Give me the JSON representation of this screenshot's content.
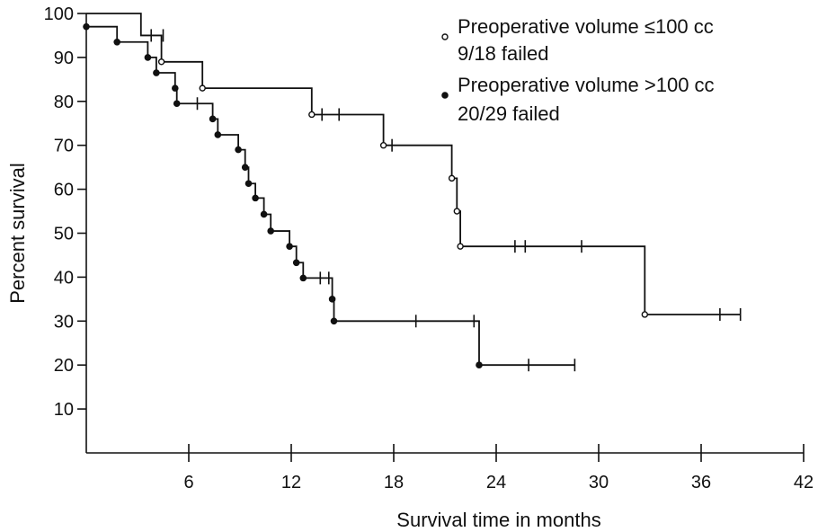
{
  "chart_data": {
    "type": "line",
    "subtype": "kaplan-meier step curve",
    "xlabel": "Survival time in months",
    "ylabel": "Percent survival",
    "xlim": [
      0,
      42
    ],
    "ylim": [
      0,
      100
    ],
    "x_ticks": [
      6,
      12,
      18,
      24,
      30,
      36,
      42
    ],
    "y_ticks": [
      10,
      20,
      30,
      40,
      50,
      60,
      70,
      80,
      90,
      100
    ],
    "grid": false,
    "legend_position": "top-right",
    "series": [
      {
        "name": "Preoperative volume ≤100 cc",
        "note": "9/18 failed",
        "marker": "open-circle",
        "steps": [
          [
            0,
            100
          ],
          [
            3.2,
            95
          ],
          [
            4.4,
            89
          ],
          [
            6.8,
            83
          ],
          [
            13.2,
            77
          ],
          [
            17.4,
            70
          ],
          [
            21.4,
            62.5
          ],
          [
            21.7,
            55
          ],
          [
            21.9,
            47
          ],
          [
            32.7,
            31.5
          ]
        ],
        "events": [
          [
            4.4,
            89
          ],
          [
            6.8,
            83
          ],
          [
            13.2,
            77
          ],
          [
            17.4,
            70
          ],
          [
            21.4,
            62.5
          ],
          [
            21.7,
            55
          ],
          [
            21.9,
            47
          ],
          [
            32.7,
            31.5
          ]
        ],
        "censored": [
          [
            3.8,
            95
          ],
          [
            13.8,
            77
          ],
          [
            14.8,
            77
          ],
          [
            17.9,
            70
          ],
          [
            25.1,
            47
          ],
          [
            25.7,
            47
          ],
          [
            29.0,
            47
          ],
          [
            37.1,
            31.5
          ],
          [
            38.3,
            31.5
          ]
        ],
        "end_x": 38.3
      },
      {
        "name": "Preoperative volume >100 cc",
        "note": "20/29 failed",
        "marker": "filled-circle",
        "steps": [
          [
            0,
            97
          ],
          [
            1.8,
            93.5
          ],
          [
            3.6,
            90
          ],
          [
            4.1,
            86.5
          ],
          [
            5.2,
            83
          ],
          [
            5.3,
            79.5
          ],
          [
            7.4,
            76
          ],
          [
            7.7,
            72.4
          ],
          [
            8.9,
            69
          ],
          [
            9.3,
            65
          ],
          [
            9.5,
            61.3
          ],
          [
            9.9,
            58
          ],
          [
            10.4,
            54.3
          ],
          [
            10.8,
            50.5
          ],
          [
            11.9,
            47
          ],
          [
            12.3,
            43.3
          ],
          [
            12.7,
            39.8
          ],
          [
            14.4,
            35
          ],
          [
            14.5,
            30
          ],
          [
            23.0,
            20
          ]
        ],
        "events": [
          [
            0,
            97
          ],
          [
            1.8,
            93.5
          ],
          [
            3.6,
            90
          ],
          [
            4.1,
            86.5
          ],
          [
            5.2,
            83
          ],
          [
            5.3,
            79.5
          ],
          [
            7.4,
            76
          ],
          [
            7.7,
            72.4
          ],
          [
            8.9,
            69
          ],
          [
            9.3,
            65
          ],
          [
            9.5,
            61.3
          ],
          [
            9.9,
            58
          ],
          [
            10.4,
            54.3
          ],
          [
            10.8,
            50.5
          ],
          [
            11.9,
            47
          ],
          [
            12.3,
            43.3
          ],
          [
            12.7,
            39.8
          ],
          [
            14.4,
            35
          ],
          [
            14.5,
            30
          ],
          [
            23.0,
            20
          ]
        ],
        "censored": [
          [
            4.5,
            95
          ],
          [
            6.5,
            79.5
          ],
          [
            13.7,
            39.8
          ],
          [
            14.2,
            39.8
          ],
          [
            19.3,
            30
          ],
          [
            22.7,
            30
          ],
          [
            25.9,
            20
          ],
          [
            28.6,
            20
          ]
        ],
        "end_x": 28.6
      }
    ],
    "legend": [
      {
        "marker": "open-circle",
        "line1": "Preoperative volume ≤100 cc",
        "line2": "9/18 failed"
      },
      {
        "marker": "filled-circle",
        "line1": "Preoperative volume >100 cc",
        "line2": "20/29 failed"
      }
    ]
  }
}
